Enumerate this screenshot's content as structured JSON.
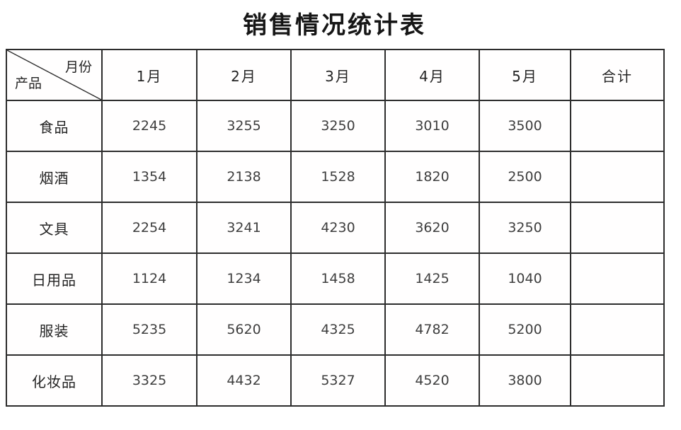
{
  "title": "销售情况统计表",
  "table": {
    "corner": {
      "top_label": "月份",
      "bottom_label": "产品"
    },
    "columns": [
      "1月",
      "2月",
      "3月",
      "4月",
      "5月",
      "合计"
    ],
    "rows": [
      {
        "product": "食品",
        "values": [
          "2245",
          "3255",
          "3250",
          "3010",
          "3500",
          ""
        ]
      },
      {
        "product": "烟酒",
        "values": [
          "1354",
          "2138",
          "1528",
          "1820",
          "2500",
          ""
        ]
      },
      {
        "product": "文具",
        "values": [
          "2254",
          "3241",
          "4230",
          "3620",
          "3250",
          ""
        ]
      },
      {
        "product": "日用品",
        "values": [
          "1124",
          "1234",
          "1458",
          "1425",
          "1040",
          ""
        ]
      },
      {
        "product": "服装",
        "values": [
          "5235",
          "5620",
          "4325",
          "4782",
          "5200",
          ""
        ]
      },
      {
        "product": "化妆品",
        "values": [
          "3325",
          "4432",
          "5327",
          "4520",
          "3800",
          ""
        ]
      }
    ]
  },
  "colors": {
    "border": "#2d2d2d",
    "title_text": "#161616",
    "header_text": "#242424",
    "number_text": "#3e3e3e",
    "background": "#ffffff"
  }
}
